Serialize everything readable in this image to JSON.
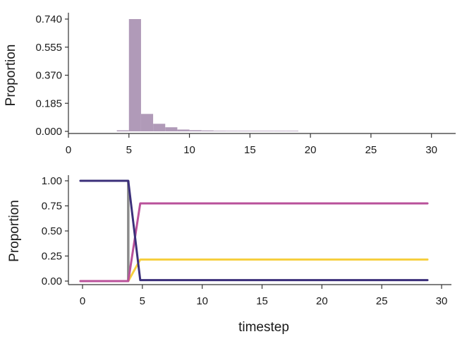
{
  "chart_data": [
    {
      "type": "bar",
      "ylabel": "Proportion",
      "xlabel": "",
      "xlim": [
        0,
        32
      ],
      "ylim": [
        0,
        0.74
      ],
      "xticks": [
        0,
        5,
        10,
        15,
        20,
        25,
        30
      ],
      "yticks": [
        "0.000",
        "0.185",
        "0.370",
        "0.555",
        "0.740"
      ],
      "bin_width": 1,
      "bins": [
        {
          "start": 4,
          "value": 0.007
        },
        {
          "start": 5,
          "value": 0.74
        },
        {
          "start": 6,
          "value": 0.115
        },
        {
          "start": 7,
          "value": 0.05
        },
        {
          "start": 8,
          "value": 0.027
        },
        {
          "start": 9,
          "value": 0.012
        },
        {
          "start": 10,
          "value": 0.008
        },
        {
          "start": 11,
          "value": 0.006
        },
        {
          "start": 12,
          "value": 0.004
        },
        {
          "start": 13,
          "value": 0.003
        },
        {
          "start": 14,
          "value": 0.002
        },
        {
          "start": 15,
          "value": 0.002
        },
        {
          "start": 16,
          "value": 0.002
        },
        {
          "start": 17,
          "value": 0.002
        },
        {
          "start": 18,
          "value": 0.002
        }
      ],
      "color": "#b09ab8"
    },
    {
      "type": "line",
      "ylabel": "Proportion",
      "xlabel": "timestep",
      "xlim": [
        0,
        32
      ],
      "ylim": [
        0,
        1
      ],
      "xticks": [
        0,
        5,
        10,
        15,
        20,
        25,
        30
      ],
      "yticks": [
        "0.00",
        "0.25",
        "0.50",
        "0.75",
        "1.00"
      ],
      "vline": {
        "x": 5,
        "color": "#8a8a8a"
      },
      "series": [
        {
          "color": "#3b2f7a",
          "x": [
            1,
            5,
            6,
            30
          ],
          "y": [
            1.0,
            1.0,
            0.01,
            0.01
          ]
        },
        {
          "color": "#b9519a",
          "x": [
            1,
            5,
            6,
            30
          ],
          "y": [
            0.0,
            0.0,
            0.775,
            0.775
          ]
        },
        {
          "color": "#f6cf3f",
          "x": [
            1,
            5,
            6,
            30
          ],
          "y": [
            0.0,
            0.0,
            0.215,
            0.215
          ]
        }
      ]
    }
  ]
}
